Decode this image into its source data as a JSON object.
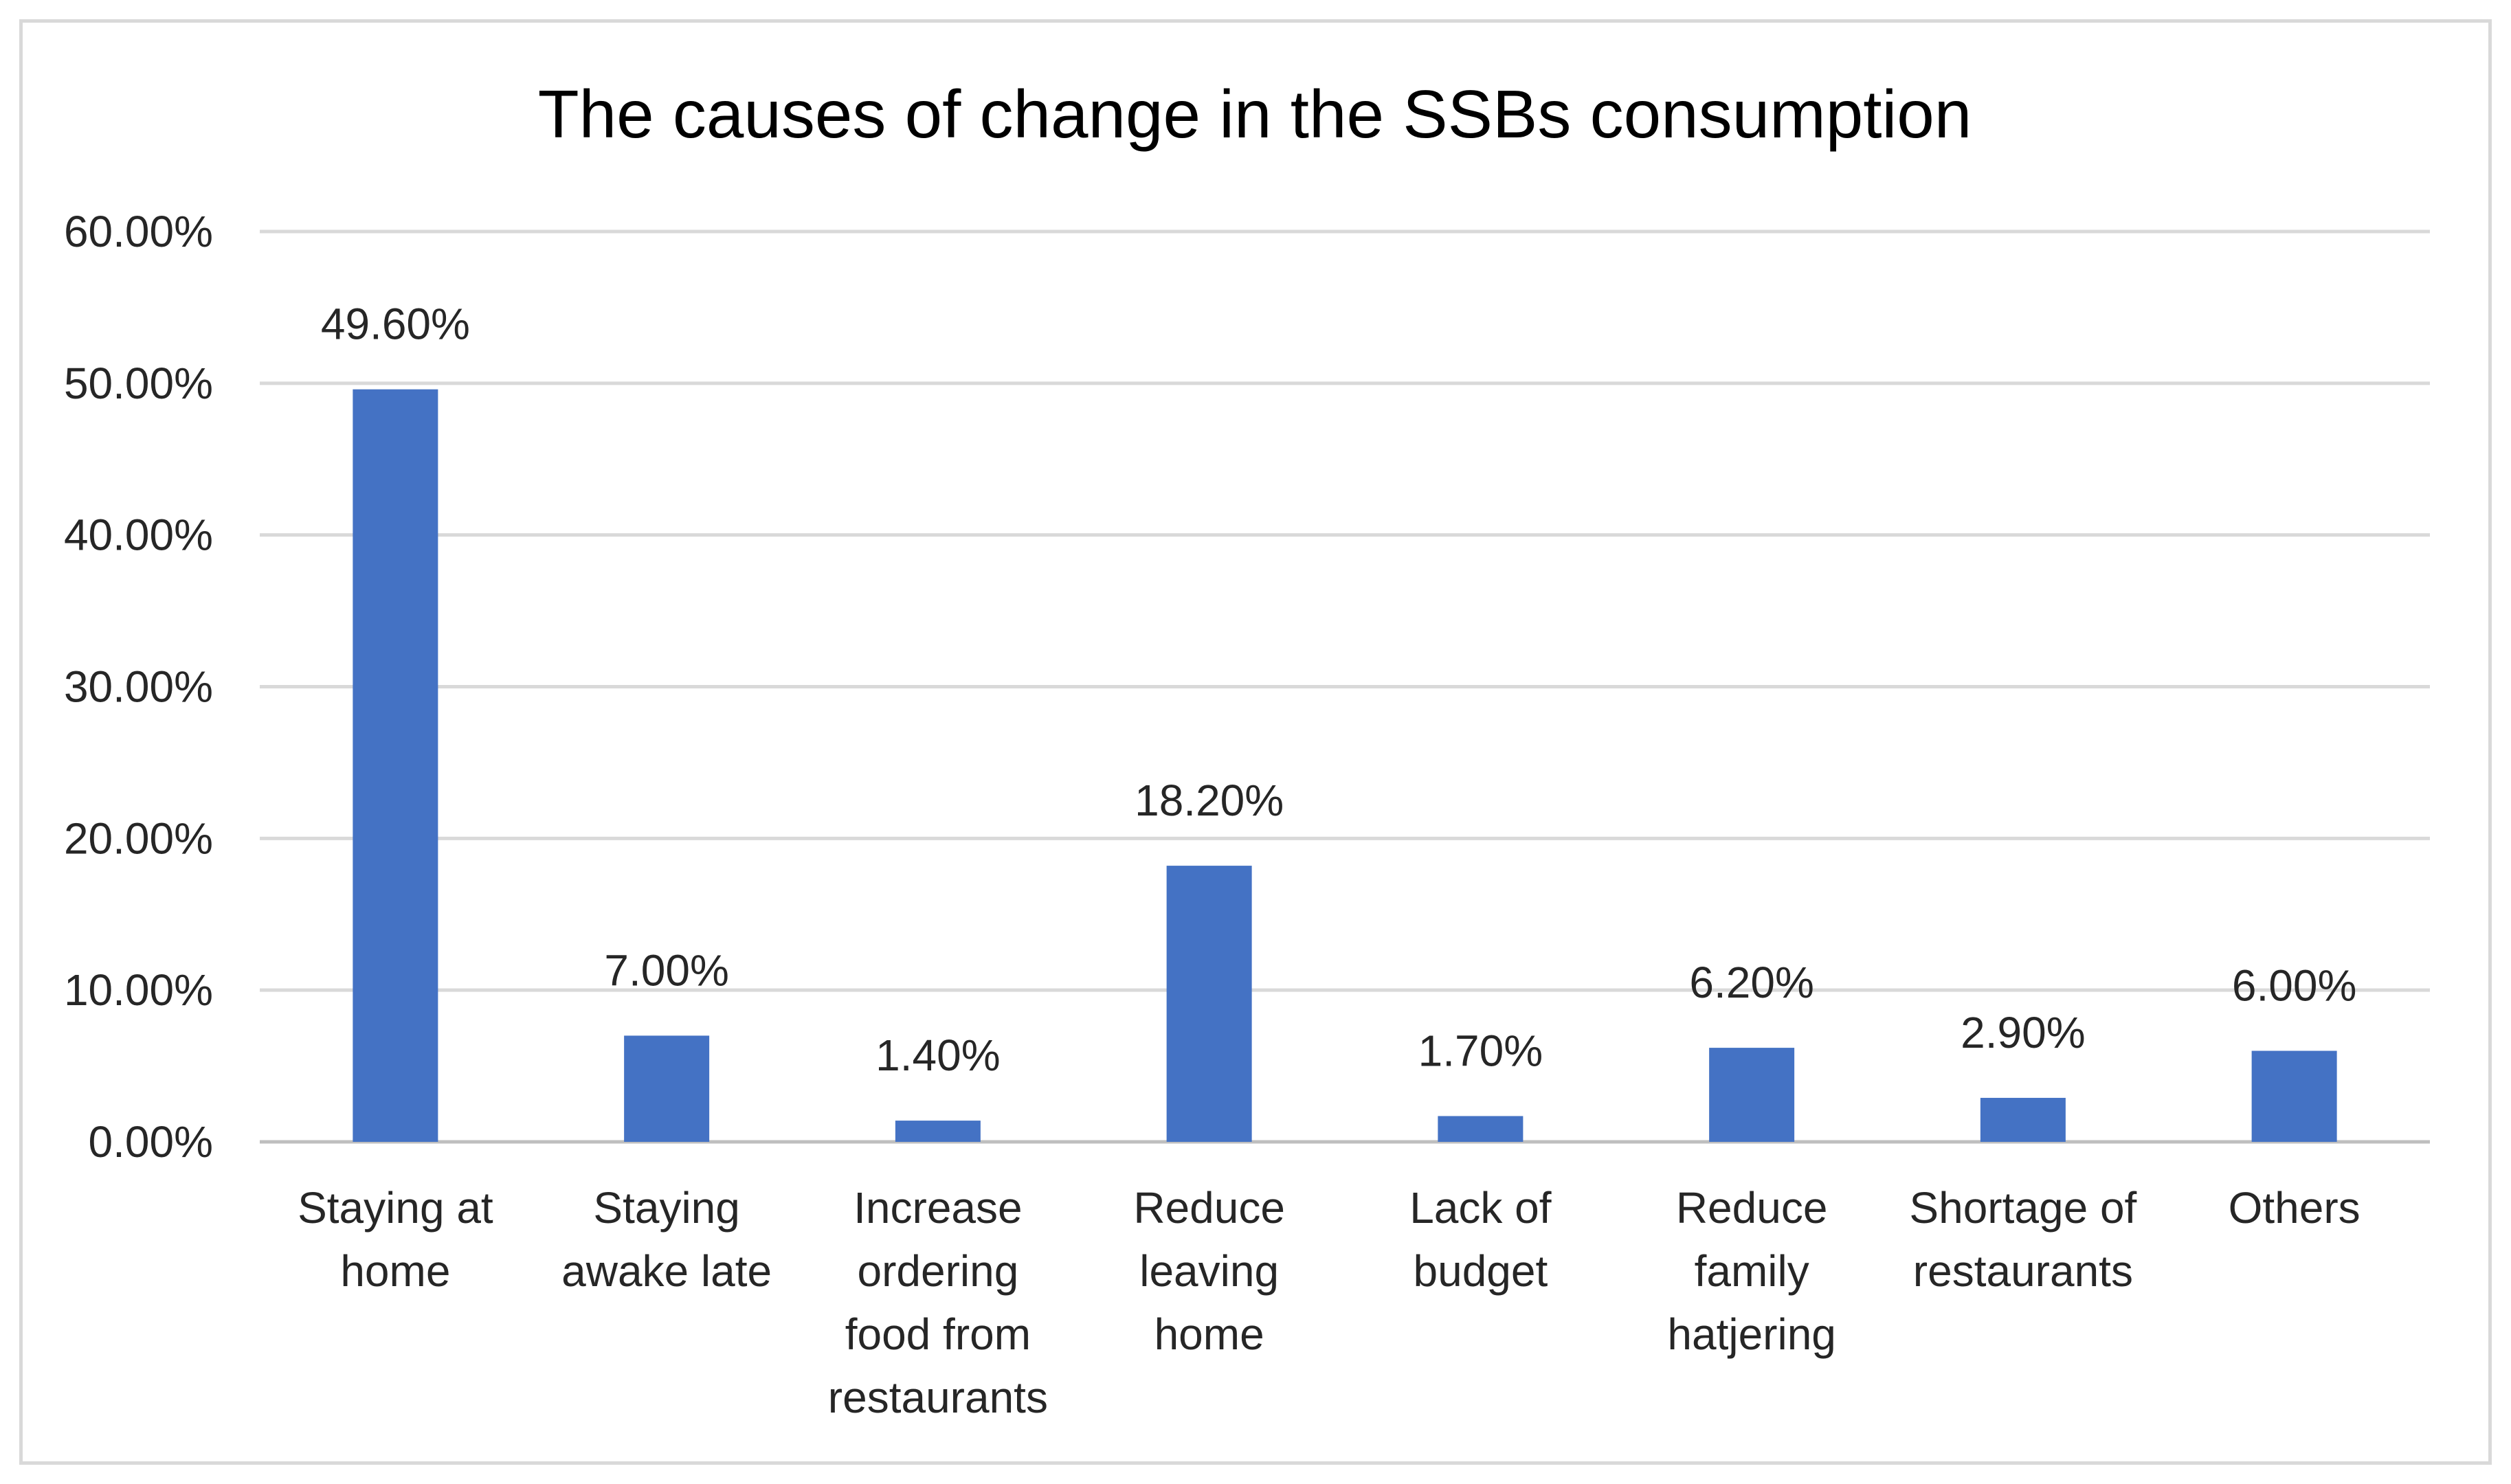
{
  "chart_data": {
    "type": "bar",
    "title": "The causes of change in the SSBs consumption",
    "xlabel": "",
    "ylabel": "",
    "categories": [
      [
        "Staying at",
        "home"
      ],
      [
        "Staying",
        "awake late"
      ],
      [
        "Increase",
        "ordering",
        "food from",
        "restaurants"
      ],
      [
        "Reduce",
        "leaving",
        "home"
      ],
      [
        "Lack of",
        "budget"
      ],
      [
        "Reduce",
        "family",
        "hatjering"
      ],
      [
        "Shortage of",
        "restaurants"
      ],
      [
        "Others"
      ]
    ],
    "values": [
      49.6,
      7.0,
      1.4,
      18.2,
      1.7,
      6.2,
      2.9,
      6.0
    ],
    "value_labels": [
      "49.60%",
      "7.00%",
      "1.40%",
      "18.20%",
      "1.70%",
      "6.20%",
      "2.90%",
      "6.00%"
    ],
    "ylim": [
      0,
      60
    ],
    "yticks": [
      0,
      10,
      20,
      30,
      40,
      50,
      60
    ],
    "ytick_labels": [
      "0.00%",
      "10.00%",
      "20.00%",
      "30.00%",
      "40.00%",
      "50.00%",
      "60.00%"
    ],
    "grid": true,
    "legend": "none",
    "colors": {
      "bar": "#4472c4",
      "grid": "#d9d9d9",
      "axis": "#bfbfbf"
    }
  }
}
